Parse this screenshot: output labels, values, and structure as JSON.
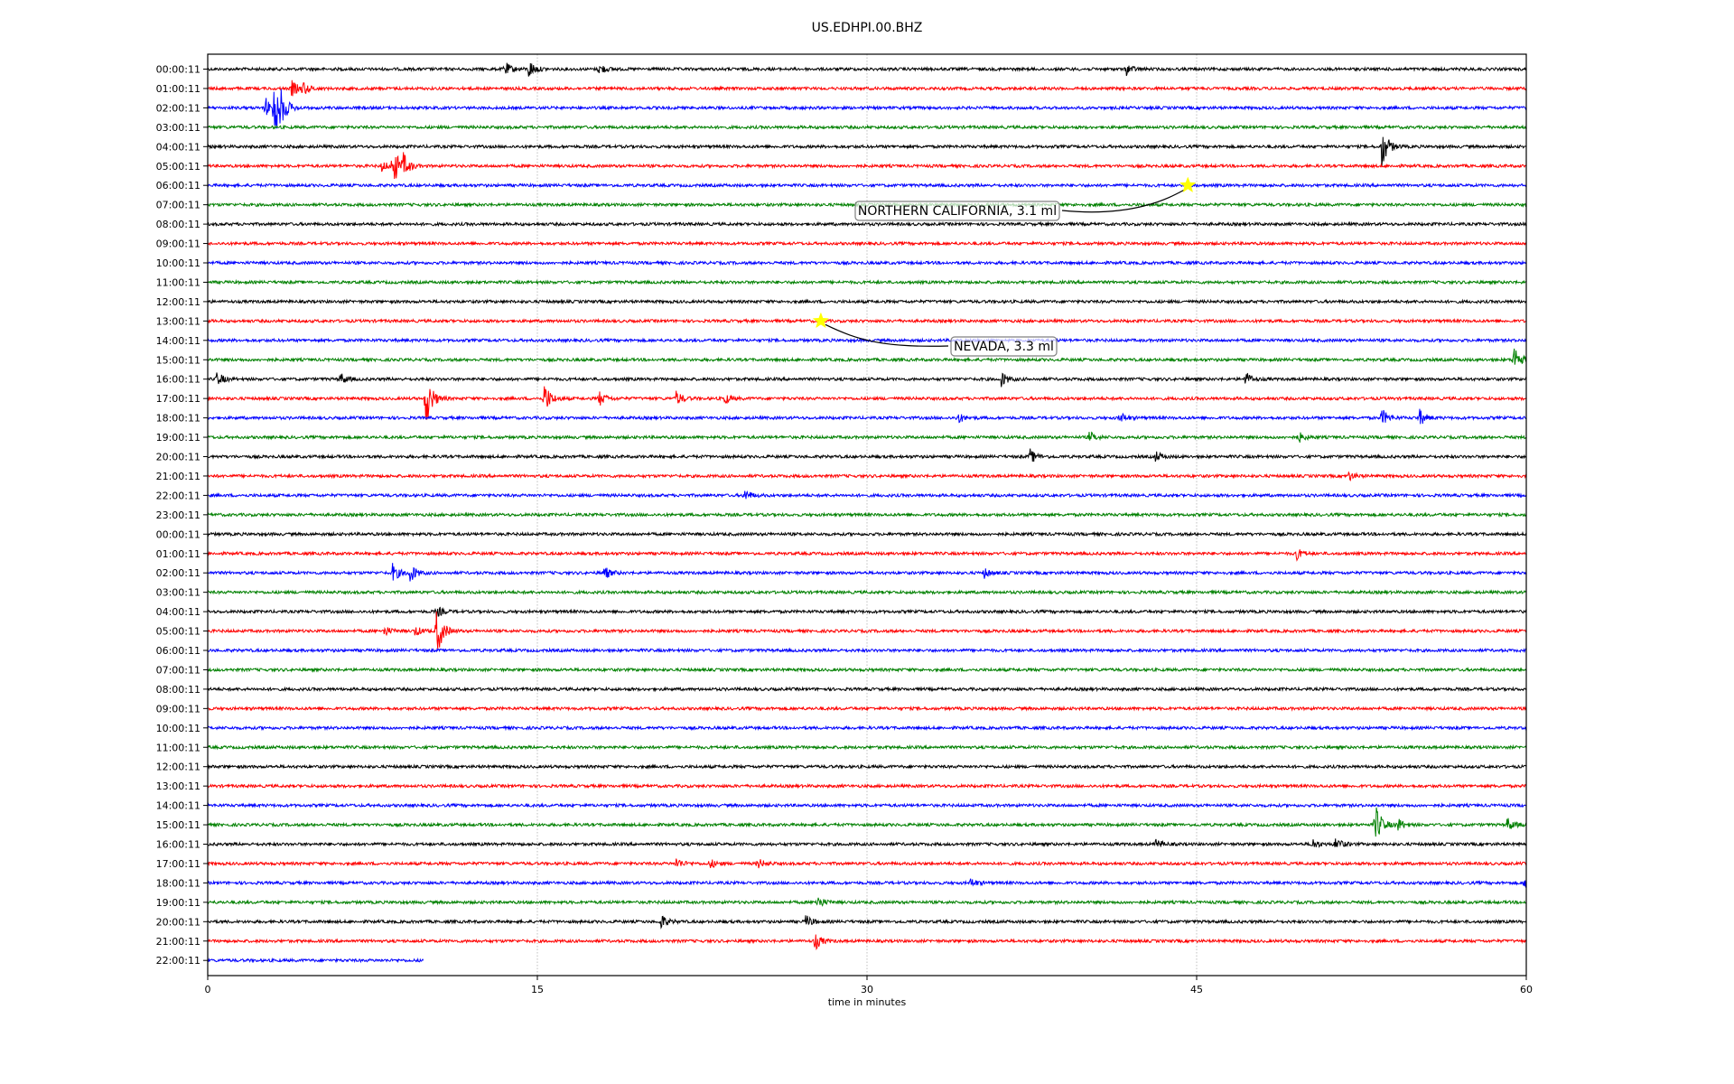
{
  "chart_data": {
    "type": "line",
    "title": "US.EDHPI.00.BHZ",
    "xlabel": "time in minutes",
    "ylabel": "",
    "xlim": [
      0,
      60
    ],
    "xticks": [
      "0",
      "15",
      "30",
      "45",
      "60"
    ],
    "xtick_values": [
      0,
      15,
      30,
      45,
      60
    ],
    "grid": "vertical dotted at x ticks",
    "colors": [
      "#000000",
      "#ff0000",
      "#0000ff",
      "#008000"
    ],
    "row_labels": [
      "00:00:11",
      "01:00:11",
      "02:00:11",
      "03:00:11",
      "04:00:11",
      "05:00:11",
      "06:00:11",
      "07:00:11",
      "08:00:11",
      "09:00:11",
      "10:00:11",
      "11:00:11",
      "12:00:11",
      "13:00:11",
      "14:00:11",
      "15:00:11",
      "16:00:11",
      "17:00:11",
      "18:00:11",
      "19:00:11",
      "20:00:11",
      "21:00:11",
      "22:00:11",
      "23:00:11",
      "00:00:11",
      "01:00:11",
      "02:00:11",
      "03:00:11",
      "04:00:11",
      "05:00:11",
      "06:00:11",
      "07:00:11",
      "08:00:11",
      "09:00:11",
      "10:00:11",
      "11:00:11",
      "12:00:11",
      "13:00:11",
      "14:00:11",
      "15:00:11",
      "16:00:11",
      "17:00:11",
      "18:00:11",
      "19:00:11",
      "20:00:11",
      "21:00:11",
      "22:00:11"
    ],
    "last_row_end_minute": 9.8,
    "events": [
      {
        "row": 0,
        "minute": 13.5,
        "amp": 0.4
      },
      {
        "row": 0,
        "minute": 14.6,
        "amp": 0.5
      },
      {
        "row": 0,
        "minute": 17.8,
        "amp": 0.3
      },
      {
        "row": 0,
        "minute": 41.8,
        "amp": 0.3
      },
      {
        "row": 1,
        "minute": 3.8,
        "amp": 0.45
      },
      {
        "row": 1,
        "minute": 4.3,
        "amp": 0.35
      },
      {
        "row": 2,
        "minute": 2.6,
        "amp": 0.6
      },
      {
        "row": 2,
        "minute": 3.0,
        "amp": 1.9
      },
      {
        "row": 2,
        "minute": 3.3,
        "amp": 0.6
      },
      {
        "row": 4,
        "minute": 53.4,
        "amp": 1.2
      },
      {
        "row": 5,
        "minute": 7.9,
        "amp": 0.3
      },
      {
        "row": 5,
        "minute": 8.4,
        "amp": 1.2
      },
      {
        "row": 5,
        "minute": 8.9,
        "amp": 0.5
      },
      {
        "row": 15,
        "minute": 59.4,
        "amp": 0.9
      },
      {
        "row": 16,
        "minute": 0.4,
        "amp": 0.4
      },
      {
        "row": 16,
        "minute": 6.0,
        "amp": 0.35
      },
      {
        "row": 16,
        "minute": 36.1,
        "amp": 0.4
      },
      {
        "row": 16,
        "minute": 47.2,
        "amp": 0.4
      },
      {
        "row": 17,
        "minute": 9.9,
        "amp": 1.6
      },
      {
        "row": 17,
        "minute": 15.3,
        "amp": 0.9
      },
      {
        "row": 17,
        "minute": 17.8,
        "amp": 0.4
      },
      {
        "row": 17,
        "minute": 21.3,
        "amp": 0.4
      },
      {
        "row": 17,
        "minute": 23.5,
        "amp": 0.3
      },
      {
        "row": 18,
        "minute": 34.1,
        "amp": 0.3
      },
      {
        "row": 18,
        "minute": 41.5,
        "amp": 0.3
      },
      {
        "row": 18,
        "minute": 53.4,
        "amp": 0.5
      },
      {
        "row": 18,
        "minute": 55.1,
        "amp": 0.5
      },
      {
        "row": 19,
        "minute": 40.1,
        "amp": 0.3
      },
      {
        "row": 19,
        "minute": 49.6,
        "amp": 0.3
      },
      {
        "row": 20,
        "minute": 37.4,
        "amp": 0.4
      },
      {
        "row": 20,
        "minute": 43.1,
        "amp": 0.3
      },
      {
        "row": 21,
        "minute": 51.9,
        "amp": 0.25
      },
      {
        "row": 22,
        "minute": 24.4,
        "amp": 0.35
      },
      {
        "row": 25,
        "minute": 49.5,
        "amp": 0.35
      },
      {
        "row": 26,
        "minute": 8.4,
        "amp": 0.5
      },
      {
        "row": 26,
        "minute": 9.2,
        "amp": 0.5
      },
      {
        "row": 26,
        "minute": 18.0,
        "amp": 0.4
      },
      {
        "row": 26,
        "minute": 35.3,
        "amp": 0.3
      },
      {
        "row": 28,
        "minute": 10.4,
        "amp": 0.3
      },
      {
        "row": 29,
        "minute": 8.0,
        "amp": 0.3
      },
      {
        "row": 29,
        "minute": 9.4,
        "amp": 0.3
      },
      {
        "row": 29,
        "minute": 10.4,
        "amp": 1.4
      },
      {
        "row": 39,
        "minute": 53.1,
        "amp": 1.2
      },
      {
        "row": 39,
        "minute": 54.1,
        "amp": 0.4
      },
      {
        "row": 39,
        "minute": 59.1,
        "amp": 0.4
      },
      {
        "row": 40,
        "minute": 43.1,
        "amp": 0.3
      },
      {
        "row": 40,
        "minute": 50.2,
        "amp": 0.35
      },
      {
        "row": 40,
        "minute": 51.3,
        "amp": 0.4
      },
      {
        "row": 41,
        "minute": 21.3,
        "amp": 0.3
      },
      {
        "row": 41,
        "minute": 22.8,
        "amp": 0.3
      },
      {
        "row": 41,
        "minute": 25.0,
        "amp": 0.3
      },
      {
        "row": 42,
        "minute": 34.7,
        "amp": 0.25
      },
      {
        "row": 42,
        "minute": 59.9,
        "amp": 0.3
      },
      {
        "row": 43,
        "minute": 27.7,
        "amp": 0.4
      },
      {
        "row": 44,
        "minute": 20.6,
        "amp": 0.4
      },
      {
        "row": 44,
        "minute": 27.2,
        "amp": 0.35
      },
      {
        "row": 45,
        "minute": 27.6,
        "amp": 0.5
      }
    ],
    "annotations": [
      {
        "label": "NORTHERN CALIFORNIA, 3.1 ml",
        "row": 6,
        "minute": 44.6,
        "marker": "star",
        "marker_color": "#ffff00"
      },
      {
        "label": "NEVADA, 3.3 ml",
        "row": 13,
        "minute": 27.9,
        "marker": "star",
        "marker_color": "#ffff00"
      }
    ]
  }
}
